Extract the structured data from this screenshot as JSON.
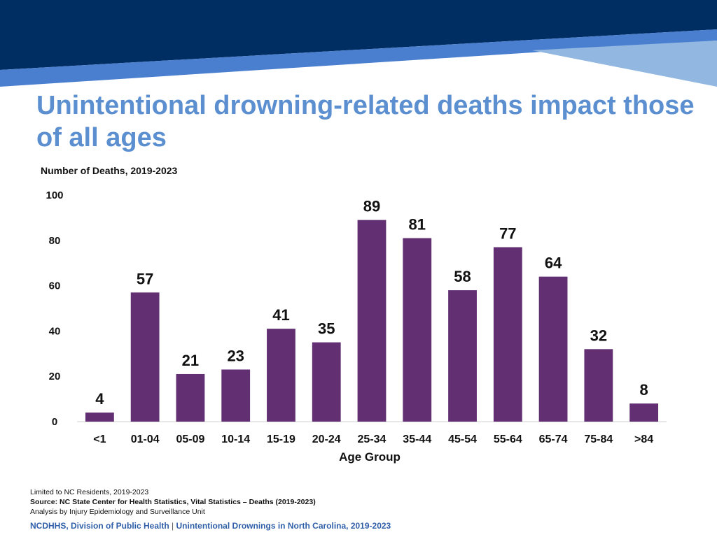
{
  "slide": {
    "title": "Unintentional drowning-related deaths impact those of all ages",
    "colors": {
      "banner_dark": "#002d62",
      "banner_mid": "#4a7fd0",
      "banner_light": "#92b8e2",
      "title": "#5b8fd0",
      "bar": "#622f72",
      "footer": "#2f5ea8"
    }
  },
  "chart_data": {
    "type": "bar",
    "title": "Number of Deaths, 2019-2023",
    "xlabel": "Age Group",
    "ylabel": "Number of Deaths, 2019-2023",
    "ylim": [
      0,
      100
    ],
    "yticks": [
      0,
      20,
      40,
      60,
      80,
      100
    ],
    "grid": false,
    "categories": [
      "<1",
      "01-04",
      "05-09",
      "10-14",
      "15-19",
      "20-24",
      "25-34",
      "35-44",
      "45-54",
      "55-64",
      "65-74",
      "75-84",
      ">84"
    ],
    "values": [
      4,
      57,
      21,
      23,
      41,
      35,
      89,
      81,
      58,
      77,
      64,
      32,
      8
    ]
  },
  "notes": {
    "line1": "Limited to NC Residents, 2019-2023",
    "line2": "Source: NC State Center for Health Statistics, Vital Statistics – Deaths (2019-2023)",
    "line3": "Analysis by Injury Epidemiology and Surveillance Unit"
  },
  "footer": {
    "org": "NCDHHS, Division of Public Health",
    "separator": "|",
    "report": "Unintentional Drownings in North Carolina, 2019-2023"
  }
}
